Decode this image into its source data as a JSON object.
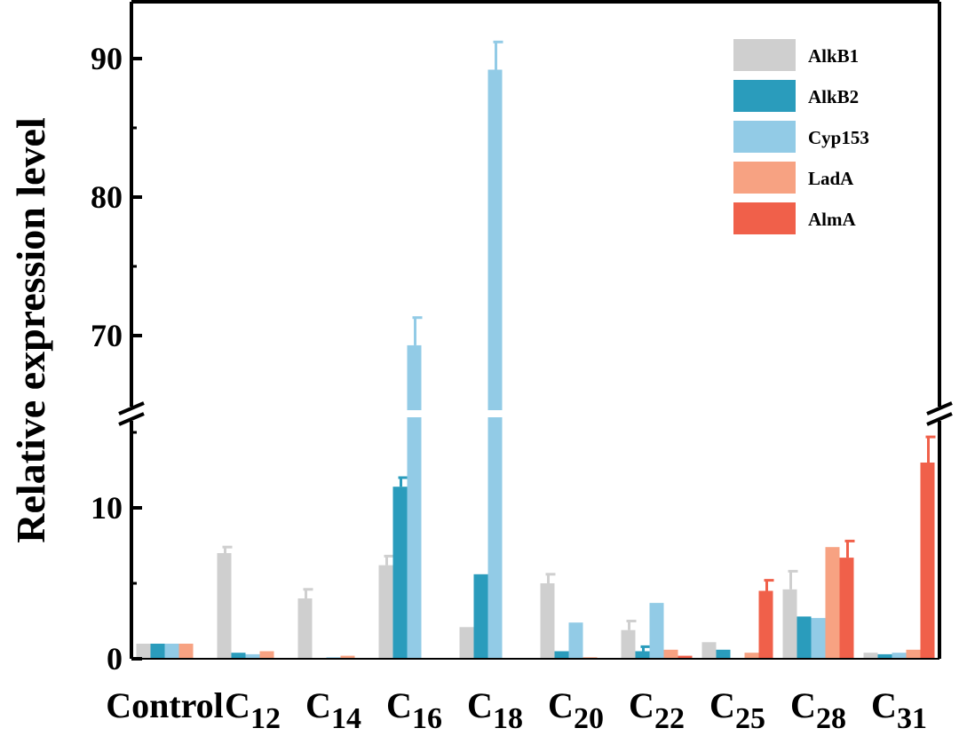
{
  "chart_data": {
    "type": "bar",
    "title": "",
    "xlabel": "",
    "ylabel": "Relative expression level",
    "y_axis_break": {
      "lower_range": [
        0,
        16
      ],
      "upper_range": [
        64,
        94
      ]
    },
    "y_ticks": [
      0,
      10,
      70,
      80,
      90
    ],
    "categories": [
      {
        "base": "Control",
        "sub": ""
      },
      {
        "base": "C",
        "sub": "12"
      },
      {
        "base": "C",
        "sub": "14"
      },
      {
        "base": "C",
        "sub": "16"
      },
      {
        "base": "C",
        "sub": "18"
      },
      {
        "base": "C",
        "sub": "20"
      },
      {
        "base": "C",
        "sub": "22"
      },
      {
        "base": "C",
        "sub": "25"
      },
      {
        "base": "C",
        "sub": "28"
      },
      {
        "base": "C",
        "sub": "31"
      }
    ],
    "legend_position": "top-right",
    "grid": false,
    "series": [
      {
        "name": "AlkB1",
        "color": "#cfcfcf",
        "values": [
          1.0,
          7.0,
          4.0,
          6.2,
          2.1,
          5.0,
          1.9,
          1.1,
          4.6,
          0.4
        ],
        "errors": [
          0.0,
          0.4,
          0.6,
          0.6,
          0.0,
          0.6,
          0.6,
          0.0,
          1.2,
          0.0
        ]
      },
      {
        "name": "AlkB2",
        "color": "#2a9cbc",
        "values": [
          1.0,
          0.4,
          0.0,
          11.4,
          5.6,
          0.5,
          0.5,
          0.6,
          2.8,
          0.3
        ],
        "errors": [
          0.0,
          0.0,
          0.0,
          0.6,
          0.0,
          0.0,
          0.3,
          0.0,
          0.0,
          0.0
        ]
      },
      {
        "name": "Cyp153",
        "color": "#92cbe6",
        "values": [
          1.0,
          0.3,
          0.1,
          69.3,
          89.2,
          2.4,
          3.7,
          0.0,
          2.7,
          0.4
        ],
        "errors": [
          0.0,
          0.0,
          0.0,
          2.0,
          2.0,
          0.0,
          0.0,
          0.0,
          0.0,
          0.0
        ]
      },
      {
        "name": "LadA",
        "color": "#f7a282",
        "values": [
          1.0,
          0.5,
          0.2,
          0.0,
          0.0,
          0.1,
          0.6,
          0.4,
          7.4,
          0.6
        ],
        "errors": [
          0.0,
          0.0,
          0.0,
          0.0,
          0.0,
          0.0,
          0.0,
          0.0,
          0.0,
          0.0
        ]
      },
      {
        "name": "AlmA",
        "color": "#f0604a",
        "values": [
          0.0,
          0.0,
          0.0,
          0.0,
          0.0,
          0.0,
          0.2,
          4.5,
          6.7,
          13.0
        ],
        "errors": [
          0.0,
          0.0,
          0.0,
          0.0,
          0.0,
          0.0,
          0.0,
          0.7,
          1.1,
          1.7
        ]
      }
    ]
  }
}
